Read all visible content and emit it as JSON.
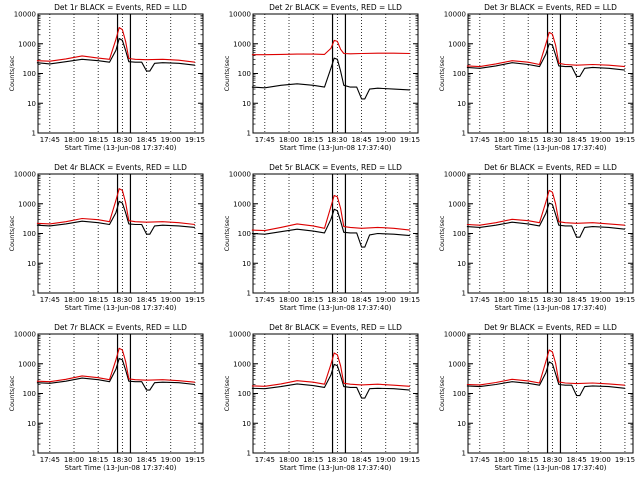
{
  "chart_data": [
    {
      "type": "line",
      "title": "Det 1r BLACK = Events, RED = LLD",
      "xlabel": "Start Time (13-Jun-08 17:37:40)",
      "ylabel": "Counts/sec",
      "x_ticks": [
        "17:45",
        "18:00",
        "18:15",
        "18:30",
        "18:45",
        "19:00",
        "19:15"
      ],
      "y_ticks": [
        "1",
        "10",
        "100",
        "1000",
        "10000"
      ],
      "y_scale": "log",
      "ylim": [
        1,
        10000
      ],
      "series": [
        {
          "name": "Events",
          "color": "#000000",
          "x": [
            "17:37",
            "17:45",
            "17:55",
            "18:05",
            "18:15",
            "18:22",
            "18:26",
            "18:28",
            "18:30",
            "18:32",
            "18:34",
            "18:38",
            "18:42",
            "18:45",
            "18:47",
            "18:50",
            "18:55",
            "19:05",
            "19:15"
          ],
          "y": [
            230,
            210,
            250,
            300,
            270,
            240,
            600,
            1500,
            1300,
            600,
            250,
            240,
            240,
            120,
            120,
            220,
            230,
            220,
            190
          ]
        },
        {
          "name": "LLD",
          "color": "#dd0000",
          "x": [
            "17:37",
            "17:45",
            "17:55",
            "18:05",
            "18:15",
            "18:22",
            "18:26",
            "18:28",
            "18:30",
            "18:32",
            "18:34",
            "18:38",
            "18:45",
            "18:55",
            "19:05",
            "19:15"
          ],
          "y": [
            270,
            260,
            310,
            390,
            330,
            300,
            1400,
            3500,
            3000,
            1200,
            320,
            300,
            290,
            300,
            280,
            240
          ]
        }
      ]
    },
    {
      "type": "line",
      "title": "Det 2r BLACK = Events, RED = LLD",
      "xlabel": "Start Time (13-Jun-08 17:37:40)",
      "ylabel": "Counts/sec",
      "x_ticks": [
        "17:45",
        "18:00",
        "18:15",
        "18:30",
        "18:45",
        "19:00",
        "19:15"
      ],
      "y_ticks": [
        "1",
        "10",
        "100",
        "1000",
        "10000"
      ],
      "y_scale": "log",
      "ylim": [
        1,
        10000
      ],
      "series": [
        {
          "name": "Events",
          "color": "#000000",
          "x": [
            "17:37",
            "17:45",
            "17:55",
            "18:05",
            "18:15",
            "18:22",
            "18:26",
            "18:28",
            "18:30",
            "18:32",
            "18:34",
            "18:38",
            "18:42",
            "18:45",
            "18:47",
            "18:50",
            "18:55",
            "19:05",
            "19:15"
          ],
          "y": [
            35,
            33,
            40,
            45,
            40,
            35,
            150,
            330,
            300,
            120,
            40,
            35,
            35,
            14,
            14,
            30,
            32,
            30,
            28
          ]
        },
        {
          "name": "LLD",
          "color": "#dd0000",
          "x": [
            "17:37",
            "17:45",
            "17:55",
            "18:05",
            "18:15",
            "18:22",
            "18:26",
            "18:28",
            "18:30",
            "18:32",
            "18:34",
            "18:38",
            "18:45",
            "18:55",
            "19:05",
            "19:15"
          ],
          "y": [
            430,
            430,
            440,
            450,
            450,
            440,
            700,
            1300,
            1200,
            650,
            470,
            460,
            470,
            480,
            480,
            470
          ]
        }
      ]
    },
    {
      "type": "line",
      "title": "Det 3r BLACK = Events, RED = LLD",
      "xlabel": "Start Time (13-Jun-08 17:37:40)",
      "ylabel": "Counts/sec",
      "x_ticks": [
        "17:45",
        "18:00",
        "18:15",
        "18:30",
        "18:45",
        "19:00",
        "19:15"
      ],
      "y_ticks": [
        "1",
        "10",
        "100",
        "1000",
        "10000"
      ],
      "y_scale": "log",
      "ylim": [
        1,
        10000
      ],
      "series": [
        {
          "name": "Events",
          "color": "#000000",
          "x": [
            "17:37",
            "17:45",
            "17:55",
            "18:05",
            "18:15",
            "18:22",
            "18:26",
            "18:28",
            "18:30",
            "18:32",
            "18:34",
            "18:38",
            "18:42",
            "18:45",
            "18:47",
            "18:50",
            "18:55",
            "19:05",
            "19:15"
          ],
          "y": [
            160,
            150,
            180,
            230,
            200,
            170,
            450,
            1000,
            900,
            420,
            180,
            170,
            170,
            80,
            80,
            150,
            160,
            150,
            130
          ]
        },
        {
          "name": "LLD",
          "color": "#dd0000",
          "x": [
            "17:37",
            "17:45",
            "17:55",
            "18:05",
            "18:15",
            "18:22",
            "18:26",
            "18:28",
            "18:30",
            "18:32",
            "18:34",
            "18:38",
            "18:45",
            "18:55",
            "19:05",
            "19:15"
          ],
          "y": [
            180,
            170,
            210,
            270,
            240,
            200,
            1000,
            2400,
            2100,
            900,
            220,
            200,
            190,
            200,
            190,
            170
          ]
        }
      ]
    },
    {
      "type": "line",
      "title": "Det 4r BLACK = Events, RED = LLD",
      "xlabel": "Start Time (13-Jun-08 17:37:40)",
      "ylabel": "Counts/sec",
      "x_ticks": [
        "17:45",
        "18:00",
        "18:15",
        "18:30",
        "18:45",
        "19:00",
        "19:15"
      ],
      "y_ticks": [
        "1",
        "10",
        "100",
        "1000",
        "10000"
      ],
      "y_scale": "log",
      "ylim": [
        1,
        10000
      ],
      "series": [
        {
          "name": "Events",
          "color": "#000000",
          "x": [
            "17:37",
            "17:45",
            "17:55",
            "18:05",
            "18:15",
            "18:22",
            "18:26",
            "18:28",
            "18:30",
            "18:32",
            "18:34",
            "18:38",
            "18:42",
            "18:45",
            "18:47",
            "18:50",
            "18:55",
            "19:05",
            "19:15"
          ],
          "y": [
            190,
            180,
            210,
            260,
            230,
            200,
            500,
            1200,
            1050,
            500,
            210,
            200,
            200,
            95,
            95,
            180,
            190,
            180,
            160
          ]
        },
        {
          "name": "LLD",
          "color": "#dd0000",
          "x": [
            "17:37",
            "17:45",
            "17:55",
            "18:05",
            "18:15",
            "18:22",
            "18:26",
            "18:28",
            "18:30",
            "18:32",
            "18:34",
            "18:38",
            "18:45",
            "18:55",
            "19:05",
            "19:15"
          ],
          "y": [
            220,
            210,
            250,
            320,
            290,
            250,
            1300,
            3200,
            2800,
            1100,
            270,
            250,
            240,
            250,
            230,
            200
          ]
        }
      ]
    },
    {
      "type": "line",
      "title": "Det 5r BLACK = Events, RED = LLD",
      "xlabel": "Start Time (13-Jun-08 17:37:40)",
      "ylabel": "Counts/sec",
      "x_ticks": [
        "17:45",
        "18:00",
        "18:15",
        "18:30",
        "18:45",
        "19:00",
        "19:15"
      ],
      "y_ticks": [
        "1",
        "10",
        "100",
        "1000",
        "10000"
      ],
      "y_scale": "log",
      "ylim": [
        1,
        10000
      ],
      "series": [
        {
          "name": "Events",
          "color": "#000000",
          "x": [
            "17:37",
            "17:45",
            "17:55",
            "18:05",
            "18:15",
            "18:22",
            "18:26",
            "18:28",
            "18:30",
            "18:32",
            "18:34",
            "18:38",
            "18:42",
            "18:45",
            "18:47",
            "18:50",
            "18:55",
            "19:05",
            "19:15"
          ],
          "y": [
            100,
            95,
            115,
            140,
            120,
            105,
            300,
            650,
            580,
            260,
            110,
            105,
            105,
            35,
            35,
            90,
            100,
            95,
            85
          ]
        },
        {
          "name": "LLD",
          "color": "#dd0000",
          "x": [
            "17:37",
            "17:45",
            "17:55",
            "18:05",
            "18:15",
            "18:22",
            "18:26",
            "18:28",
            "18:30",
            "18:32",
            "18:34",
            "18:38",
            "18:45",
            "18:55",
            "19:05",
            "19:15"
          ],
          "y": [
            130,
            125,
            160,
            210,
            180,
            150,
            800,
            1900,
            1700,
            700,
            170,
            160,
            150,
            160,
            150,
            130
          ]
        }
      ]
    },
    {
      "type": "line",
      "title": "Det 6r BLACK = Events, RED = LLD",
      "xlabel": "Start Time (13-Jun-08 17:37:40)",
      "ylabel": "Counts/sec",
      "x_ticks": [
        "17:45",
        "18:00",
        "18:15",
        "18:30",
        "18:45",
        "19:00",
        "19:15"
      ],
      "y_ticks": [
        "1",
        "10",
        "100",
        "1000",
        "10000"
      ],
      "y_scale": "log",
      "ylim": [
        1,
        10000
      ],
      "series": [
        {
          "name": "Events",
          "color": "#000000",
          "x": [
            "17:37",
            "17:45",
            "17:55",
            "18:05",
            "18:15",
            "18:22",
            "18:26",
            "18:28",
            "18:30",
            "18:32",
            "18:34",
            "18:38",
            "18:42",
            "18:45",
            "18:47",
            "18:50",
            "18:55",
            "19:05",
            "19:15"
          ],
          "y": [
            170,
            160,
            190,
            240,
            210,
            180,
            480,
            1050,
            950,
            440,
            190,
            180,
            180,
            75,
            75,
            160,
            170,
            160,
            140
          ]
        },
        {
          "name": "LLD",
          "color": "#dd0000",
          "x": [
            "17:37",
            "17:45",
            "17:55",
            "18:05",
            "18:15",
            "18:22",
            "18:26",
            "18:28",
            "18:30",
            "18:32",
            "18:34",
            "18:38",
            "18:45",
            "18:55",
            "19:05",
            "19:15"
          ],
          "y": [
            200,
            190,
            230,
            300,
            270,
            230,
            1150,
            2800,
            2450,
            1000,
            250,
            230,
            220,
            230,
            210,
            190
          ]
        }
      ]
    },
    {
      "type": "line",
      "title": "Det 7r BLACK = Events, RED = LLD",
      "xlabel": "Start Time (13-Jun-08 17:37:40)",
      "ylabel": "Counts/sec",
      "x_ticks": [
        "17:45",
        "18:00",
        "18:15",
        "18:30",
        "18:45",
        "19:00",
        "19:15"
      ],
      "y_ticks": [
        "1",
        "10",
        "100",
        "1000",
        "10000"
      ],
      "y_scale": "log",
      "ylim": [
        1,
        10000
      ],
      "series": [
        {
          "name": "Events",
          "color": "#000000",
          "x": [
            "17:37",
            "17:45",
            "17:55",
            "18:05",
            "18:15",
            "18:22",
            "18:26",
            "18:28",
            "18:30",
            "18:32",
            "18:34",
            "18:38",
            "18:42",
            "18:45",
            "18:47",
            "18:50",
            "18:55",
            "19:05",
            "19:15"
          ],
          "y": [
            230,
            220,
            260,
            330,
            290,
            250,
            650,
            1500,
            1350,
            620,
            260,
            250,
            250,
            130,
            130,
            230,
            240,
            230,
            200
          ]
        },
        {
          "name": "LLD",
          "color": "#dd0000",
          "x": [
            "17:37",
            "17:45",
            "17:55",
            "18:05",
            "18:15",
            "18:22",
            "18:26",
            "18:28",
            "18:30",
            "18:32",
            "18:34",
            "18:38",
            "18:45",
            "18:55",
            "19:05",
            "19:15"
          ],
          "y": [
            260,
            250,
            300,
            390,
            340,
            290,
            1350,
            3300,
            2900,
            1200,
            310,
            290,
            280,
            290,
            270,
            240
          ]
        }
      ]
    },
    {
      "type": "line",
      "title": "Det 8r BLACK = Events, RED = LLD",
      "xlabel": "Start Time (13-Jun-08 17:37:40)",
      "ylabel": "Counts/sec",
      "x_ticks": [
        "17:45",
        "18:00",
        "18:15",
        "18:30",
        "18:45",
        "19:00",
        "19:15"
      ],
      "y_ticks": [
        "1",
        "10",
        "100",
        "1000",
        "10000"
      ],
      "y_scale": "log",
      "ylim": [
        1,
        10000
      ],
      "series": [
        {
          "name": "Events",
          "color": "#000000",
          "x": [
            "17:37",
            "17:45",
            "17:55",
            "18:05",
            "18:15",
            "18:22",
            "18:26",
            "18:28",
            "18:30",
            "18:32",
            "18:34",
            "18:38",
            "18:42",
            "18:45",
            "18:47",
            "18:50",
            "18:55",
            "19:05",
            "19:15"
          ],
          "y": [
            150,
            145,
            170,
            210,
            185,
            160,
            420,
            950,
            850,
            400,
            170,
            160,
            160,
            70,
            70,
            145,
            150,
            145,
            130
          ]
        },
        {
          "name": "LLD",
          "color": "#dd0000",
          "x": [
            "17:37",
            "17:45",
            "17:55",
            "18:05",
            "18:15",
            "18:22",
            "18:26",
            "18:28",
            "18:30",
            "18:32",
            "18:34",
            "18:38",
            "18:45",
            "18:55",
            "19:05",
            "19:15"
          ],
          "y": [
            180,
            175,
            210,
            270,
            240,
            205,
            950,
            2300,
            2000,
            850,
            220,
            205,
            195,
            205,
            190,
            175
          ]
        }
      ]
    },
    {
      "type": "line",
      "title": "Det 9r BLACK = Events, RED = LLD",
      "xlabel": "Start Time (13-Jun-08 17:37:40)",
      "ylabel": "Counts/sec",
      "x_ticks": [
        "17:45",
        "18:00",
        "18:15",
        "18:30",
        "18:45",
        "19:00",
        "19:15"
      ],
      "y_ticks": [
        "1",
        "10",
        "100",
        "1000",
        "10000"
      ],
      "y_scale": "log",
      "ylim": [
        1,
        10000
      ],
      "series": [
        {
          "name": "Events",
          "color": "#000000",
          "x": [
            "17:37",
            "17:45",
            "17:55",
            "18:05",
            "18:15",
            "18:22",
            "18:26",
            "18:28",
            "18:30",
            "18:32",
            "18:34",
            "18:38",
            "18:42",
            "18:45",
            "18:47",
            "18:50",
            "18:55",
            "19:05",
            "19:15"
          ],
          "y": [
            180,
            170,
            200,
            250,
            220,
            190,
            500,
            1150,
            1000,
            460,
            200,
            190,
            190,
            85,
            85,
            170,
            180,
            170,
            150
          ]
        },
        {
          "name": "LLD",
          "color": "#dd0000",
          "x": [
            "17:37",
            "17:45",
            "17:55",
            "18:05",
            "18:15",
            "18:22",
            "18:26",
            "18:28",
            "18:30",
            "18:32",
            "18:34",
            "18:38",
            "18:45",
            "18:55",
            "19:05",
            "19:15"
          ],
          "y": [
            200,
            195,
            235,
            300,
            265,
            225,
            1200,
            2900,
            2500,
            1050,
            245,
            225,
            215,
            225,
            210,
            190
          ]
        }
      ]
    }
  ]
}
